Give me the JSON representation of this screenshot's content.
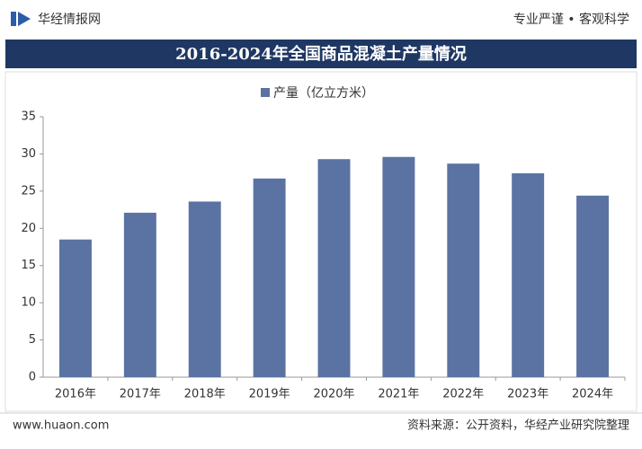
{
  "header": {
    "brand": "华经情报网",
    "slogan": "专业严谨 • 客观科学"
  },
  "chart_data": {
    "type": "bar",
    "title": "2016-2024年全国商品混凝土产量情况",
    "categories": [
      "2016年",
      "2017年",
      "2018年",
      "2019年",
      "2020年",
      "2021年",
      "2022年",
      "2023年",
      "2024年"
    ],
    "series": [
      {
        "name": "产量（亿立方米）",
        "color": "#5b73a3",
        "values": [
          18.5,
          22.1,
          23.6,
          26.7,
          29.3,
          29.6,
          28.7,
          27.4,
          24.4
        ]
      }
    ],
    "ylim": [
      0,
      35
    ],
    "yticks": [
      0,
      5,
      10,
      15,
      20,
      25,
      30,
      35
    ],
    "grid": false,
    "legend": "top"
  },
  "footer": {
    "website": "www.huaon.com",
    "source": "资料来源：公开资料，华经产业研究院整理"
  }
}
